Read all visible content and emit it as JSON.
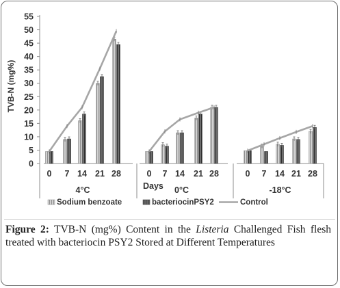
{
  "chart_data": {
    "type": "bar",
    "ylabel": "TVB-N (mg%)",
    "ylim": [
      0,
      55
    ],
    "yticks": [
      0,
      5,
      10,
      15,
      20,
      25,
      30,
      35,
      40,
      45,
      50,
      55
    ],
    "days_label": "Days",
    "categories": [
      "0",
      "7",
      "14",
      "21",
      "28"
    ],
    "groups": [
      {
        "label": "4°C",
        "control": [
          4.5,
          14,
          21,
          35.5,
          49.5
        ],
        "sodium_benzoate": [
          4.5,
          9,
          16,
          30,
          46.5
        ],
        "bacteriocin": [
          4.5,
          9.2,
          18.5,
          32.5,
          44.5
        ]
      },
      {
        "label": "0°C",
        "control": [
          4.5,
          12,
          16.5,
          19,
          21
        ],
        "sodium_benzoate": [
          4.5,
          7,
          11.5,
          17,
          21
        ],
        "bacteriocin": [
          4.5,
          6.5,
          11.5,
          18.5,
          21
        ]
      },
      {
        "label": "-18°C",
        "control": [
          4.8,
          7.2,
          9.5,
          11.8,
          14
        ],
        "sodium_benzoate": [
          4.8,
          6.5,
          7.2,
          9.2,
          12
        ],
        "bacteriocin": [
          4.8,
          4.5,
          6.8,
          9,
          13.5
        ]
      }
    ],
    "legend": [
      "Sodium benzoate",
      "bacteriocinPSY2",
      "Control"
    ],
    "colors": {
      "sodium_benzoate": "#b5b5b5",
      "bacteriocin": "#5a5a5a",
      "control": "#a6a6a6",
      "axis": "#8c8c8c"
    }
  },
  "caption": {
    "figure_label": "Figure 2:",
    "text_before": "TVB-N (mg%) Content in the",
    "italic_word": "Listeria",
    "text_after": "Challenged Fish flesh treated with bacteriocin PSY2 Stored at Different Temperatures"
  }
}
